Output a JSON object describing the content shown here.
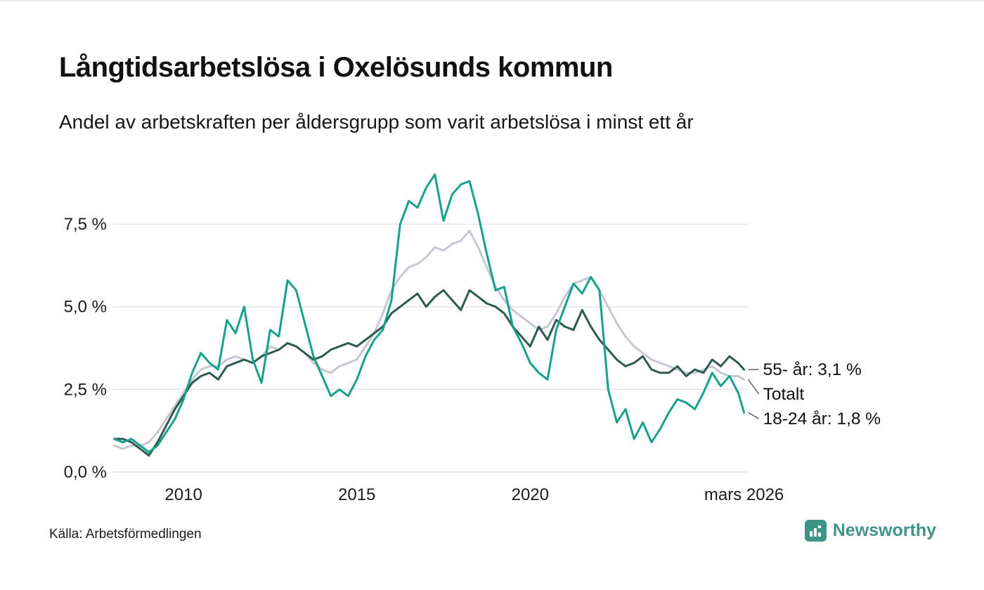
{
  "chart_data": {
    "type": "line",
    "title": "Långtidsarbetslösa i Oxelösunds kommun",
    "subtitle": "Andel av arbetskraften per åldersgrupp som varit arbetslösa i minst ett år",
    "xlabel": "",
    "ylabel": "",
    "grid": "horizontal",
    "legend": "end-labels-right",
    "xlim": [
      2007.95,
      2026.3
    ],
    "ylim": [
      0,
      9.5
    ],
    "yticks": [
      {
        "value": 0,
        "label": "0,0 %"
      },
      {
        "value": 2.5,
        "label": "2,5 %"
      },
      {
        "value": 5,
        "label": "5,0 %"
      },
      {
        "value": 7.5,
        "label": "7,5 %"
      }
    ],
    "xticks": [
      {
        "value": 2010,
        "label": "2010"
      },
      {
        "value": 2015,
        "label": "2015"
      },
      {
        "value": 2020,
        "label": "2020"
      },
      {
        "value": 2026.17,
        "label": "mars 2026"
      }
    ],
    "x": [
      2008,
      2008.25,
      2008.5,
      2008.75,
      2009,
      2009.25,
      2009.5,
      2009.75,
      2010,
      2010.25,
      2010.5,
      2010.75,
      2011,
      2011.25,
      2011.5,
      2011.75,
      2012,
      2012.25,
      2012.5,
      2012.75,
      2013,
      2013.25,
      2013.5,
      2013.75,
      2014,
      2014.25,
      2014.5,
      2014.75,
      2015,
      2015.25,
      2015.5,
      2015.75,
      2016,
      2016.25,
      2016.5,
      2016.75,
      2017,
      2017.25,
      2017.5,
      2017.75,
      2018,
      2018.25,
      2018.5,
      2018.75,
      2019,
      2019.25,
      2019.5,
      2019.75,
      2020,
      2020.25,
      2020.5,
      2020.75,
      2021,
      2021.25,
      2021.5,
      2021.75,
      2022,
      2022.25,
      2022.5,
      2022.75,
      2023,
      2023.25,
      2023.5,
      2023.75,
      2024,
      2024.25,
      2024.5,
      2024.75,
      2025,
      2025.25,
      2025.5,
      2025.75,
      2026,
      2026.17
    ],
    "series": [
      {
        "name": "Totalt",
        "end_label": "Totalt",
        "color": "#c5c8d2",
        "stroke_width": 3,
        "values": [
          0.8,
          0.7,
          0.8,
          0.8,
          0.9,
          1.2,
          1.6,
          2.0,
          2.4,
          2.8,
          3.1,
          3.2,
          3.2,
          3.4,
          3.5,
          3.4,
          3.3,
          3.5,
          3.8,
          3.7,
          3.9,
          3.8,
          3.6,
          3.3,
          3.1,
          3.0,
          3.2,
          3.3,
          3.4,
          3.8,
          4.2,
          4.8,
          5.5,
          5.9,
          6.2,
          6.3,
          6.5,
          6.8,
          6.7,
          6.9,
          7.0,
          7.3,
          6.8,
          6.2,
          5.6,
          5.2,
          4.9,
          4.7,
          4.5,
          4.3,
          4.4,
          4.8,
          5.3,
          5.7,
          5.8,
          5.9,
          5.5,
          5.0,
          4.5,
          4.1,
          3.8,
          3.6,
          3.4,
          3.3,
          3.2,
          3.1,
          3.0,
          3.0,
          3.1,
          3.2,
          3.0,
          2.9,
          2.9,
          2.8
        ]
      },
      {
        "name": "55- år",
        "end_label": "55- år: 3,1 %",
        "color": "#2e5a50",
        "stroke_width": 3,
        "values": [
          1.0,
          1.0,
          0.9,
          0.7,
          0.5,
          0.9,
          1.4,
          1.9,
          2.3,
          2.7,
          2.9,
          3.0,
          2.8,
          3.2,
          3.3,
          3.4,
          3.3,
          3.5,
          3.6,
          3.7,
          3.9,
          3.8,
          3.6,
          3.4,
          3.5,
          3.7,
          3.8,
          3.9,
          3.8,
          4.0,
          4.2,
          4.4,
          4.8,
          5.0,
          5.2,
          5.4,
          5.0,
          5.3,
          5.5,
          5.2,
          4.9,
          5.5,
          5.3,
          5.1,
          5.0,
          4.8,
          4.4,
          4.1,
          3.8,
          4.4,
          4.0,
          4.6,
          4.4,
          4.3,
          4.9,
          4.4,
          4.0,
          3.7,
          3.4,
          3.2,
          3.3,
          3.5,
          3.1,
          3.0,
          3.0,
          3.2,
          2.9,
          3.1,
          3.0,
          3.4,
          3.2,
          3.5,
          3.3,
          3.1
        ]
      },
      {
        "name": "18-24 år",
        "end_label": "18-24 år: 1,8 %",
        "color": "#17a08c",
        "stroke_width": 3,
        "values": [
          1.0,
          0.9,
          1.0,
          0.8,
          0.6,
          0.8,
          1.2,
          1.6,
          2.2,
          3.0,
          3.6,
          3.3,
          3.1,
          4.6,
          4.2,
          5.0,
          3.4,
          2.7,
          4.3,
          4.1,
          5.8,
          5.5,
          4.5,
          3.5,
          2.9,
          2.3,
          2.5,
          2.3,
          2.8,
          3.5,
          4.0,
          4.3,
          5.2,
          7.5,
          8.2,
          8.0,
          8.6,
          9.0,
          7.6,
          8.4,
          8.7,
          8.8,
          7.8,
          6.6,
          5.5,
          5.6,
          4.4,
          3.9,
          3.3,
          3.0,
          2.8,
          4.3,
          5.0,
          5.7,
          5.4,
          5.9,
          5.5,
          2.5,
          1.5,
          1.9,
          1.0,
          1.5,
          0.9,
          1.3,
          1.8,
          2.2,
          2.1,
          1.9,
          2.4,
          3.0,
          2.6,
          2.9,
          2.4,
          1.8
        ]
      }
    ]
  },
  "footer": {
    "source": "Källa: Arbetsförmedlingen",
    "brand": "Newsworthy"
  },
  "colors": {
    "grid": "#e3e4e8",
    "tick_text": "#1a1a1a",
    "brand_teal": "#3e9487"
  }
}
